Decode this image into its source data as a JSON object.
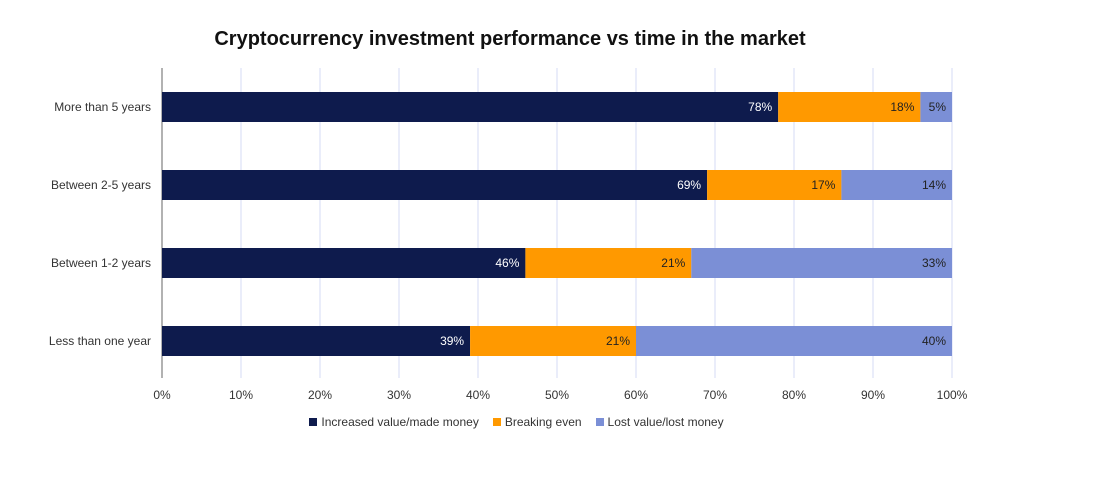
{
  "colors": {
    "increased": "#0e1b4d",
    "breaking_even": "#ff9900",
    "lost": "#7b8fd6",
    "grid": "#d6dbf5",
    "axis": "#666666"
  },
  "chart_data": {
    "type": "bar",
    "orientation": "horizontal",
    "stacked": true,
    "title": "Cryptocurrency investment performance vs time in the market",
    "xlabel": "",
    "ylabel": "",
    "xlim": [
      0,
      100
    ],
    "x_ticks": [
      "0%",
      "10%",
      "20%",
      "30%",
      "40%",
      "50%",
      "60%",
      "70%",
      "80%",
      "90%",
      "100%"
    ],
    "grid": true,
    "legend_position": "bottom",
    "categories": [
      "More than 5 years",
      "Between 2-5 years",
      "Between 1-2 years",
      "Less than one year"
    ],
    "series": [
      {
        "name": "Increased value/made money",
        "values": [
          78,
          69,
          46,
          39
        ],
        "labels": [
          "78%",
          "69%",
          "46%",
          "39%"
        ]
      },
      {
        "name": "Breaking even",
        "values": [
          18,
          17,
          21,
          21
        ],
        "labels": [
          "18%",
          "17%",
          "21%",
          "21%"
        ]
      },
      {
        "name": "Lost value/lost money",
        "values": [
          5,
          14,
          33,
          40
        ],
        "labels": [
          "5%",
          "14%",
          "33%",
          "40%"
        ]
      }
    ]
  }
}
